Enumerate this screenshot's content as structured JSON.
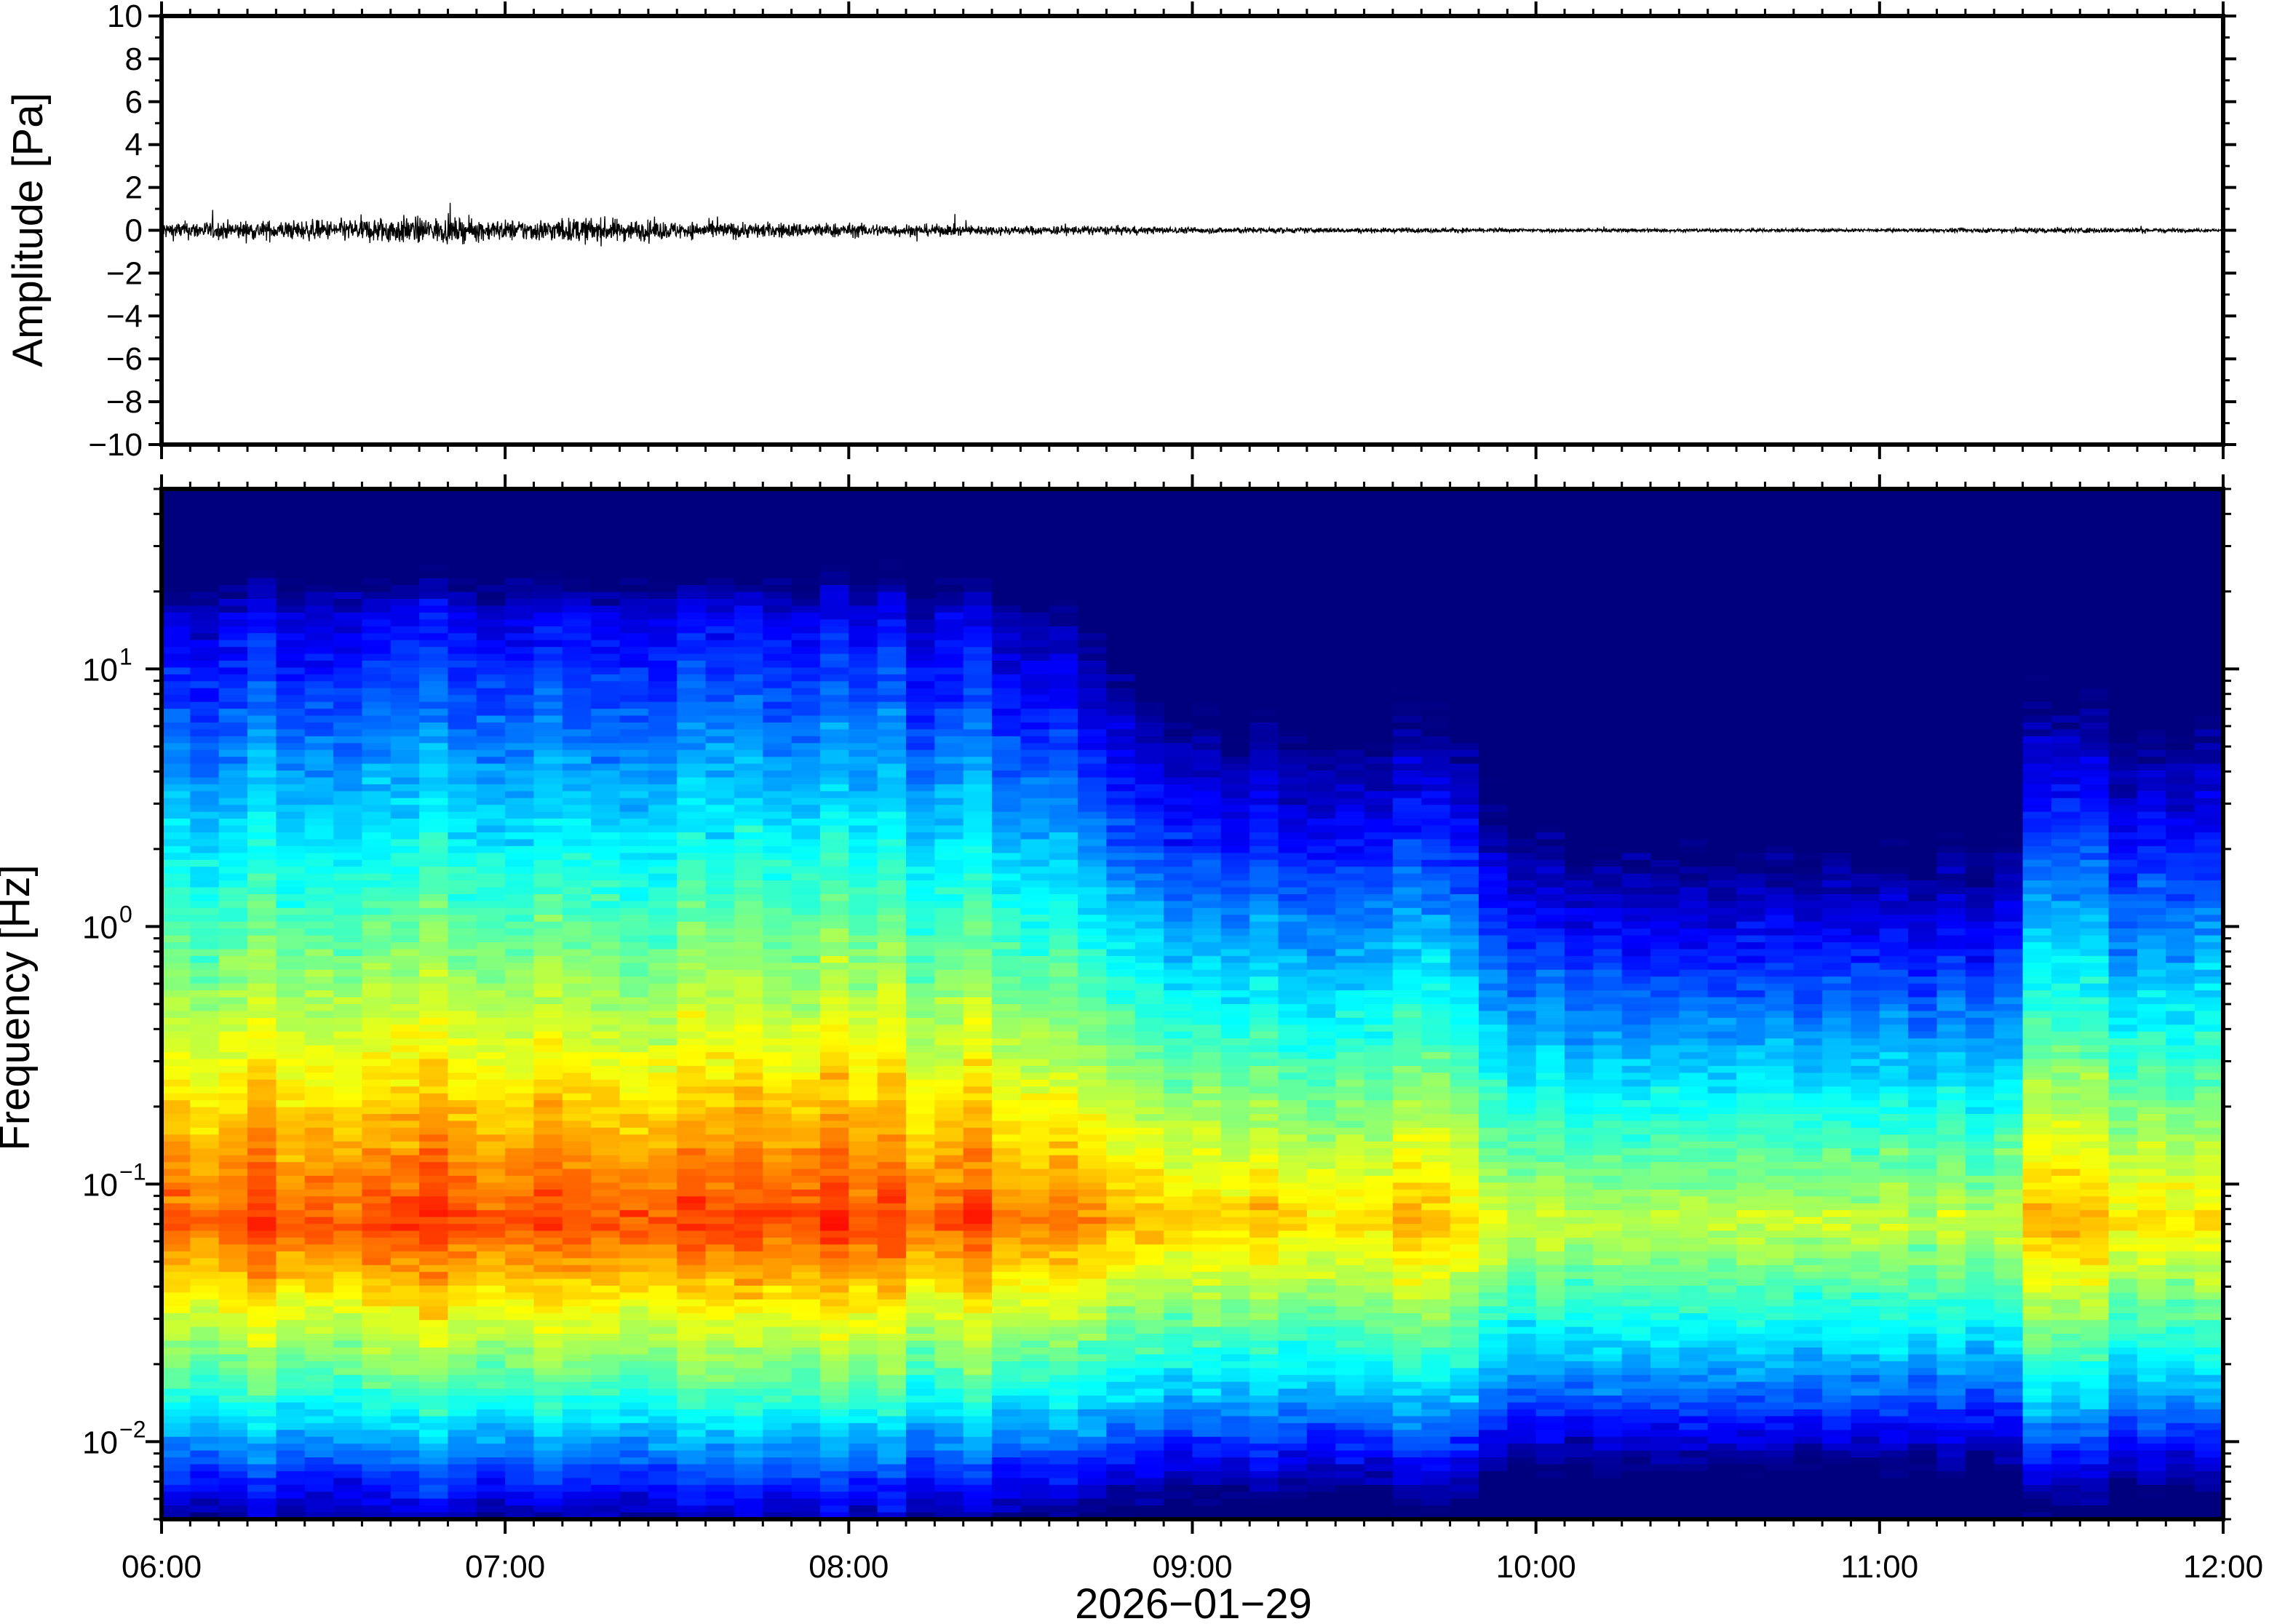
{
  "chart_data": [
    {
      "type": "line",
      "title": "",
      "ylabel": "Amplitude [Pa]",
      "ylim": [
        -10,
        10
      ],
      "yticks": [
        {
          "value": 10,
          "label": "10"
        },
        {
          "value": 8,
          "label": "8"
        },
        {
          "value": 6,
          "label": "6"
        },
        {
          "value": 4,
          "label": "4"
        },
        {
          "value": 2,
          "label": "2"
        },
        {
          "value": 0,
          "label": "0"
        },
        {
          "value": -2,
          "label": "−2"
        },
        {
          "value": -4,
          "label": "−4"
        },
        {
          "value": -6,
          "label": "−6"
        },
        {
          "value": -8,
          "label": "−8"
        },
        {
          "value": -10,
          "label": "−10"
        }
      ],
      "x_range": [
        "06:00",
        "12:00"
      ],
      "series": [
        {
          "envelope_times": [
            "06:00",
            "06:30",
            "06:40",
            "07:00",
            "07:15",
            "07:30",
            "08:00",
            "08:30",
            "08:40",
            "09:00",
            "10:00",
            "11:00",
            "11:20",
            "11:30",
            "11:45",
            "12:00"
          ],
          "envelope_amplitude": [
            0.55,
            0.65,
            0.9,
            0.65,
            0.8,
            0.55,
            0.45,
            0.28,
            0.3,
            0.2,
            0.12,
            0.1,
            0.15,
            0.2,
            0.15,
            0.1
          ]
        }
      ],
      "line_color": "#000000"
    },
    {
      "type": "heatmap",
      "title": "",
      "ylabel": "Frequency [Hz]",
      "xlabel": "2026−01−29",
      "x_range": [
        "06:00",
        "12:00"
      ],
      "xticks": [
        "06:00",
        "07:00",
        "08:00",
        "09:00",
        "10:00",
        "11:00",
        "12:00"
      ],
      "y_scale": "log",
      "ylim": [
        0.005,
        50
      ],
      "yticks": [
        {
          "base": "10",
          "exp": "−2",
          "value": 0.01
        },
        {
          "base": "10",
          "exp": "−1",
          "value": 0.1
        },
        {
          "base": "10",
          "exp": "0",
          "value": 1
        },
        {
          "base": "10",
          "exp": "1",
          "value": 10
        }
      ],
      "colormap": "jet",
      "colormap_stops": [
        "#00007f",
        "#0000ff",
        "#0080ff",
        "#00ffff",
        "#80ff80",
        "#ffff00",
        "#ff8000",
        "#ff0000"
      ],
      "grid": false
    }
  ]
}
